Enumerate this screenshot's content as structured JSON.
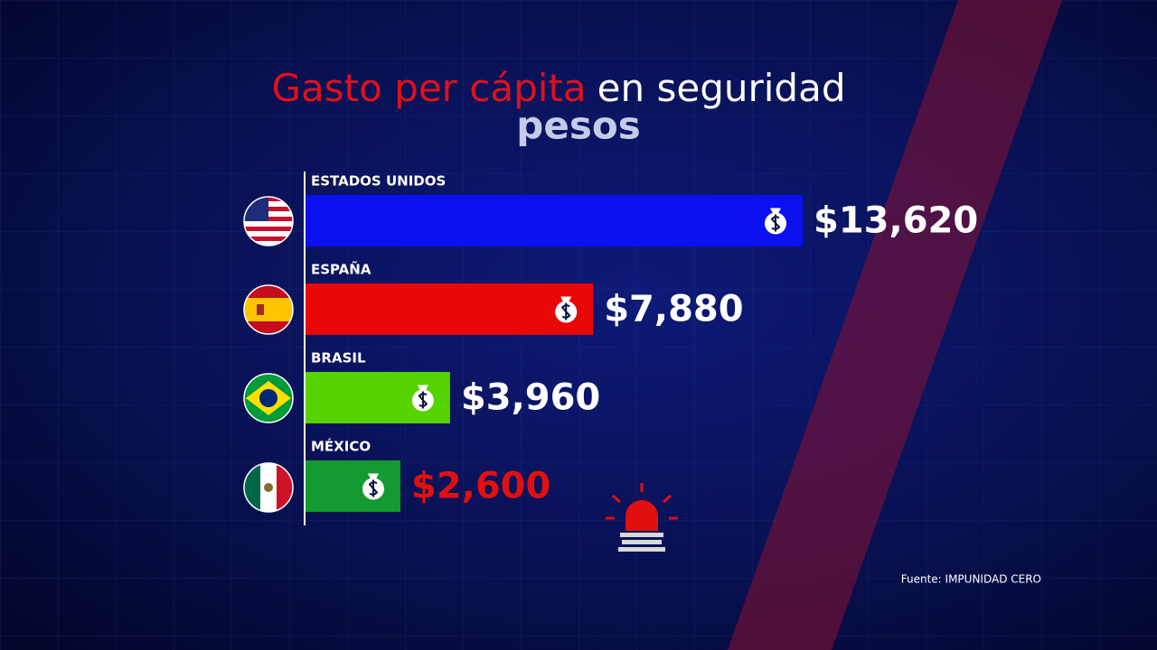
{
  "chart_data": {
    "type": "bar",
    "orientation": "horizontal",
    "title": [
      "Gasto per cápita",
      "en seguridad"
    ],
    "title_colors": [
      "#e0101a",
      "#ffffff"
    ],
    "subtitle": "pesos",
    "categories": [
      "ESTADOS UNIDOS",
      "ESPAÑA",
      "BRASIL",
      "MÉXICO"
    ],
    "values": [
      13620,
      7880,
      3960,
      2600
    ],
    "value_labels": [
      "$13,620",
      "$7,880",
      "$3,960",
      "$2,600"
    ],
    "colors": [
      "#0a10f0",
      "#e80808",
      "#55d400",
      "#139a30"
    ],
    "label_colors": [
      "#ffffff",
      "#ffffff",
      "#ffffff",
      "#e01010"
    ],
    "source": "Fuente: IMPUNIDAD CERO"
  }
}
